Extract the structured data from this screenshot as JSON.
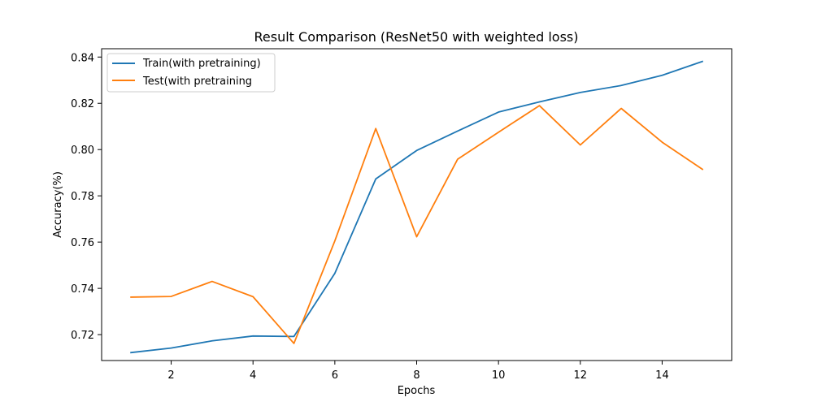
{
  "chart_data": {
    "type": "line",
    "title": "Result Comparison (ResNet50 with weighted loss)",
    "xlabel": "Epochs",
    "ylabel": "Accuracy(%)",
    "x": [
      1,
      2,
      3,
      4,
      5,
      6,
      7,
      8,
      9,
      10,
      11,
      12,
      13,
      14,
      15
    ],
    "xlim": [
      0.3,
      15.7
    ],
    "ylim": [
      0.7088,
      0.8436
    ],
    "xticks": [
      2,
      4,
      6,
      8,
      10,
      12,
      14
    ],
    "xtick_labels": [
      "2",
      "4",
      "6",
      "8",
      "10",
      "12",
      "14"
    ],
    "yticks": [
      0.72,
      0.74,
      0.76,
      0.78,
      0.8,
      0.82,
      0.84
    ],
    "ytick_labels": [
      "0.72",
      "0.74",
      "0.76",
      "0.78",
      "0.80",
      "0.82",
      "0.84"
    ],
    "grid": false,
    "legend_position": "top-left",
    "series": [
      {
        "name": "Train(with pretraining)",
        "color": "#1f77b4",
        "values": [
          0.7122,
          0.7142,
          0.7173,
          0.7194,
          0.7192,
          0.7465,
          0.7873,
          0.7996,
          0.808,
          0.8162,
          0.8206,
          0.8247,
          0.8277,
          0.8321,
          0.8382
        ]
      },
      {
        "name": "Test(with pretraining",
        "color": "#ff7f0e",
        "values": [
          0.7362,
          0.7365,
          0.743,
          0.7364,
          0.7162,
          0.7605,
          0.8091,
          0.7623,
          0.7958,
          0.8075,
          0.819,
          0.802,
          0.8178,
          0.8032,
          0.7913
        ]
      }
    ]
  }
}
